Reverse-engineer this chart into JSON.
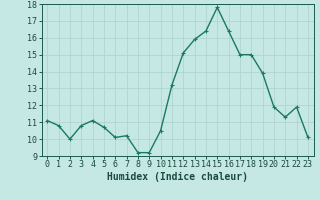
{
  "x": [
    0,
    1,
    2,
    3,
    4,
    5,
    6,
    7,
    8,
    9,
    10,
    11,
    12,
    13,
    14,
    15,
    16,
    17,
    18,
    19,
    20,
    21,
    22,
    23
  ],
  "y": [
    11.1,
    10.8,
    10.0,
    10.8,
    11.1,
    10.7,
    10.1,
    10.2,
    9.2,
    9.2,
    10.5,
    13.2,
    15.1,
    15.9,
    16.4,
    17.8,
    16.4,
    15.0,
    15.0,
    13.9,
    11.9,
    11.3,
    11.9,
    10.1
  ],
  "line_color": "#1a7a5e",
  "marker": "+",
  "marker_size": 3,
  "bg_color": "#c5e8e4",
  "grid_color": "#b0d4cf",
  "tick_color": "#1a5a4e",
  "xlabel": "Humidex (Indice chaleur)",
  "ylim": [
    9,
    18
  ],
  "xlim": [
    -0.5,
    23.5
  ],
  "yticks": [
    9,
    10,
    11,
    12,
    13,
    14,
    15,
    16,
    17,
    18
  ],
  "xticks": [
    0,
    1,
    2,
    3,
    4,
    5,
    6,
    7,
    8,
    9,
    10,
    11,
    12,
    13,
    14,
    15,
    16,
    17,
    18,
    19,
    20,
    21,
    22,
    23
  ],
  "title_color": "#1a4a3e",
  "font_size": 6.0,
  "label_font_size": 7.0,
  "linewidth": 1.0,
  "markeredgewidth": 0.8
}
